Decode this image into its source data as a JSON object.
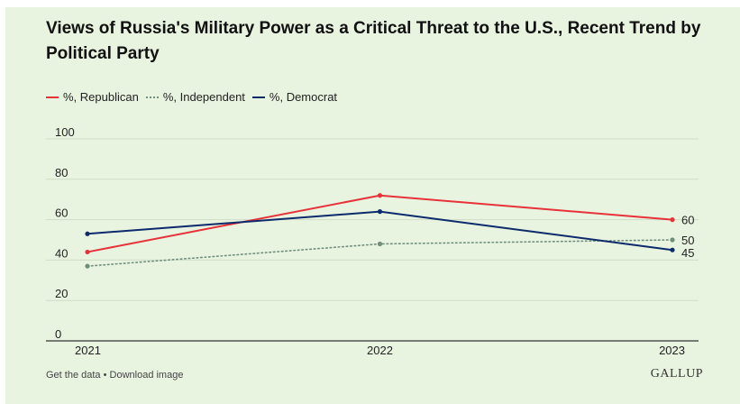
{
  "title": "Views of Russia's Military Power as a Critical Threat to the U.S., Recent Trend by Political Party",
  "footer": {
    "get_data": "Get the data",
    "separator": " • ",
    "download": "Download image",
    "brand": "GALLUP"
  },
  "colors": {
    "republican": "#e8323a",
    "independent": "#6f8f7c",
    "democrat": "#0d2b6b",
    "grid": "#cfdcc7",
    "axis": "#333333",
    "text": "#222222"
  },
  "chart_data": {
    "type": "line",
    "title": "Views of Russia's Military Power as a Critical Threat to the U.S., Recent Trend by Political Party",
    "x": [
      "2021",
      "2022",
      "2023"
    ],
    "ylim": [
      0,
      100
    ],
    "yticks": [
      0,
      20,
      40,
      60,
      80,
      100
    ],
    "grid": true,
    "legend": "top-left",
    "series": [
      {
        "name": "%, Republican",
        "key": "republican",
        "style": "solid",
        "values": [
          44,
          72,
          60
        ],
        "end_label": "60"
      },
      {
        "name": "%, Independent",
        "key": "independent",
        "style": "dotted",
        "values": [
          37,
          48,
          50
        ],
        "end_label": "50"
      },
      {
        "name": "%, Democrat",
        "key": "democrat",
        "style": "solid",
        "values": [
          53,
          64,
          45
        ],
        "end_label": "45"
      }
    ]
  }
}
